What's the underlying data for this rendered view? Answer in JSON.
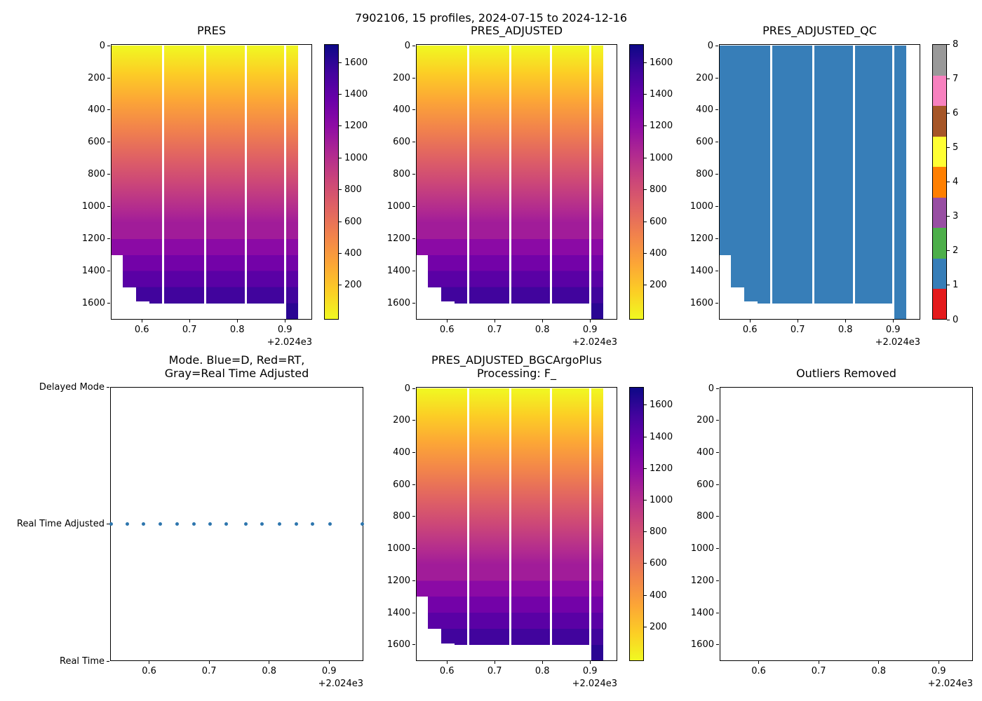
{
  "figure_title": "7902106, 15 profiles, 2024-07-15 to 2024-12-16",
  "shared": {
    "x_tick_labels": [
      "0.6",
      "0.7",
      "0.8",
      "0.9"
    ],
    "x_tick_values": [
      2024.6,
      2024.7,
      2024.8,
      2024.9
    ],
    "x_offset_label": "+2.024e3",
    "xlim": [
      2024.535,
      2024.957
    ],
    "depth_tick_labels": [
      "0",
      "200",
      "400",
      "600",
      "800",
      "1000",
      "1200",
      "1400",
      "1600"
    ],
    "depth_tick_values": [
      0,
      200,
      400,
      600,
      800,
      1000,
      1200,
      1400,
      1600
    ],
    "depth_range": [
      0,
      1700
    ],
    "profile_count": 15,
    "profile_times": [
      2024.537,
      2024.564,
      2024.591,
      2024.618,
      2024.647,
      2024.675,
      2024.702,
      2024.729,
      2024.761,
      2024.788,
      2024.817,
      2024.845,
      2024.872,
      2024.902,
      2024.955
    ],
    "segments": [
      {
        "t0": 2024.535,
        "t1": 2024.56,
        "max_depth": 1300
      },
      {
        "t0": 2024.56,
        "t1": 2024.588,
        "max_depth": 1500
      },
      {
        "t0": 2024.588,
        "t1": 2024.616,
        "max_depth": 1590
      },
      {
        "t0": 2024.616,
        "t1": 2024.642,
        "max_depth": 1600
      },
      {
        "t0": 2024.647,
        "t1": 2024.731,
        "max_depth": 1600
      },
      {
        "t0": 2024.735,
        "t1": 2024.816,
        "max_depth": 1600
      },
      {
        "t0": 2024.82,
        "t1": 2024.898,
        "max_depth": 1600
      },
      {
        "t0": 2024.903,
        "t1": 2024.928,
        "max_depth": 1700
      }
    ]
  },
  "colors": {
    "plasma_r_stops": [
      "#f0f921",
      "#fcce25",
      "#fca636",
      "#f2844b",
      "#e16462",
      "#cc4778",
      "#b12a90",
      "#8f0da4",
      "#6a00a8",
      "#41049d",
      "#0d0887"
    ],
    "depth_bands": [
      {
        "from": 1100,
        "to": 1200,
        "color": "#a11c99"
      },
      {
        "from": 1200,
        "to": 1300,
        "color": "#8b0aa5"
      },
      {
        "from": 1300,
        "to": 1400,
        "color": "#7302a8"
      },
      {
        "from": 1400,
        "to": 1500,
        "color": "#5a01a5"
      },
      {
        "from": 1500,
        "to": 1600,
        "color": "#41049d"
      },
      {
        "from": 1600,
        "to": 1700,
        "color": "#2a0593"
      }
    ],
    "qc_palette": [
      "#e41a1c",
      "#377eb8",
      "#4daf4a",
      "#984ea3",
      "#ff7f00",
      "#ffff33",
      "#a65628",
      "#f781bf",
      "#999999"
    ],
    "qc_fill": "#377eb8",
    "mode_dot": "#2e76ae",
    "spine": "#000000",
    "background": "#ffffff"
  },
  "chart_data": [
    {
      "id": "pres",
      "type": "heatmap",
      "title": "PRES",
      "cmap": "plasma_r",
      "value_equals_depth": true,
      "value_range": [
        0,
        1700
      ],
      "colorbar_ticks": [
        200,
        400,
        600,
        800,
        1000,
        1200,
        1400,
        1600
      ]
    },
    {
      "id": "pres-adjusted",
      "type": "heatmap",
      "title": "PRES_ADJUSTED",
      "cmap": "plasma_r",
      "value_equals_depth": true,
      "value_range": [
        0,
        1700
      ],
      "colorbar_ticks": [
        200,
        400,
        600,
        800,
        1000,
        1200,
        1400,
        1600
      ]
    },
    {
      "id": "pres-adjusted-qc",
      "type": "heatmap",
      "title": "PRES_ADJUSTED_QC",
      "cmap": "qc_discrete",
      "uniform_qc_value": 1,
      "colorbar_ticks": [
        0,
        1,
        2,
        3,
        4,
        5,
        6,
        7,
        8
      ]
    },
    {
      "id": "mode",
      "type": "scatter",
      "title_lines": [
        "Mode. Blue=D, Red=RT,",
        "Gray=Real Time Adjusted"
      ],
      "y_categories": [
        "Delayed Mode",
        "Real Time Adjusted",
        "Real Time"
      ],
      "points_y_category": "Real Time Adjusted"
    },
    {
      "id": "bgc-processing",
      "type": "heatmap",
      "title_lines": [
        "PRES_ADJUSTED_BGCArgoPlus",
        "Processing: F_"
      ],
      "cmap": "plasma_r",
      "value_equals_depth": true,
      "value_range": [
        0,
        1700
      ],
      "colorbar_ticks": [
        200,
        400,
        600,
        800,
        1000,
        1200,
        1400,
        1600
      ]
    },
    {
      "id": "outliers-removed",
      "type": "empty",
      "title": "Outliers Removed"
    }
  ]
}
